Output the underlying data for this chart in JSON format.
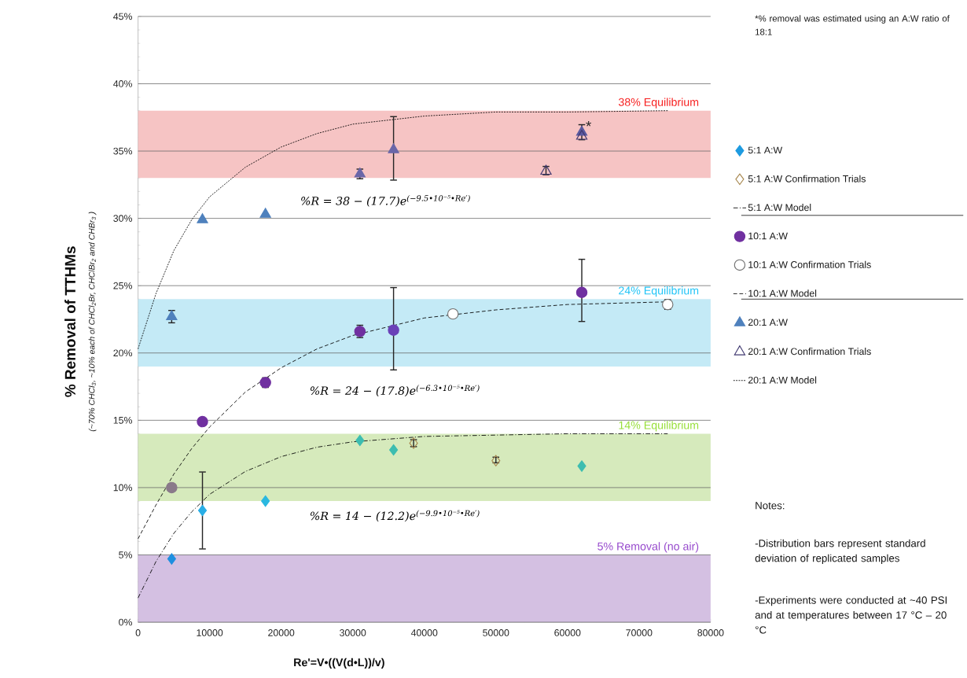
{
  "chart_data": {
    "type": "scatter",
    "xlabel": "Re'=V•((V(d•L))/v)",
    "ylabel": "% Removal of TTHMs",
    "xlim": [
      0,
      80000
    ],
    "xticks": [
      0,
      10000,
      20000,
      30000,
      40000,
      50000,
      60000,
      70000,
      80000
    ],
    "ylim": [
      0,
      45
    ],
    "yticks": [
      {
        "value": 0,
        "label": "0%"
      },
      {
        "value": 5,
        "label": "5%"
      },
      {
        "value": 10,
        "label": "10%"
      },
      {
        "value": 15,
        "label": "15%"
      },
      {
        "value": 20,
        "label": "20%"
      },
      {
        "value": 25,
        "label": "25%"
      },
      {
        "value": 30,
        "label": "30%"
      },
      {
        "value": 35,
        "label": "35%"
      },
      {
        "value": 40,
        "label": "40%"
      },
      {
        "value": 45,
        "label": "45%"
      }
    ],
    "grid": "y",
    "legend": "right",
    "bands": [
      {
        "axis": "y",
        "from": 33,
        "to": 38,
        "label": "38% Equilibrium",
        "color": "#f6c4c4"
      },
      {
        "axis": "y",
        "from": 19,
        "to": 24,
        "label": "24% Equilibrium",
        "color": "#c4eaf6"
      },
      {
        "axis": "y",
        "from": 9,
        "to": 14,
        "label": "14% Equilibrium",
        "color": "#d6eabc"
      },
      {
        "axis": "y",
        "from": 0,
        "to": 5,
        "label": "5% Removal (no air)",
        "color": "#d4c0e2"
      }
    ],
    "series": [
      {
        "name": "5:1 A:W",
        "marker": "diamond",
        "color": "#1e9be0",
        "x": [
          4700,
          9000,
          17800,
          31000,
          35700,
          62000
        ],
        "values": [
          4.7,
          8.3,
          9.0,
          13.5,
          12.8,
          11.6
        ],
        "colors": [
          "#1e8fe0",
          "#29aee6",
          "#2ab8e0",
          "#3dbdb0",
          "#3dbdb0",
          "#3dbdb0"
        ],
        "errors": [
          null,
          [
            5.4,
            11.2
          ],
          null,
          null,
          null,
          null
        ]
      },
      {
        "name": "5:1 A:W Confirmation Trials",
        "marker": "diamond",
        "color": "#a88850",
        "x": [
          38500,
          50000
        ],
        "values": [
          13.3,
          12.0
        ],
        "errors": [
          [
            13.0,
            13.6
          ],
          [
            11.8,
            12.3
          ]
        ]
      },
      {
        "name": "5:1 A:W Model",
        "type": "line",
        "marker": "none",
        "line_style": "dashdot",
        "color": "#000000",
        "x": [
          0,
          2500,
          5000,
          7500,
          10000,
          15000,
          20000,
          25000,
          30000,
          40000,
          50000,
          60000,
          74000
        ],
        "values": [
          1.8,
          4.5,
          6.6,
          8.2,
          9.5,
          11.2,
          12.3,
          13.0,
          13.4,
          13.8,
          13.9,
          14.0,
          14.0
        ]
      },
      {
        "name": "10:1 A:W",
        "marker": "circle",
        "color": "#7030a0",
        "x": [
          4700,
          9000,
          17800,
          31000,
          35700,
          62000
        ],
        "values": [
          10.0,
          14.9,
          17.8,
          21.6,
          21.7,
          24.5
        ],
        "colors": [
          "#8a7a8a",
          "#7030a0",
          "#7030a0",
          "#7030a0",
          "#6a40b8",
          "#7030a0"
        ],
        "errors": [
          null,
          null,
          [
            17.4,
            18.2
          ],
          [
            21.1,
            22.1
          ],
          [
            18.7,
            24.9
          ],
          [
            22.3,
            27.0
          ]
        ]
      },
      {
        "name": "10:1 A:W Confirmation Trials",
        "marker": "circle",
        "color": "#707070",
        "x": [
          44000,
          74000
        ],
        "values": [
          22.9,
          23.6
        ],
        "errors": [
          [
            22.7,
            23.2
          ],
          [
            23.2,
            24.0
          ]
        ]
      },
      {
        "name": "10:1 A:W Model",
        "type": "line",
        "marker": "none",
        "line_style": "dashed",
        "color": "#000000",
        "x": [
          0,
          2500,
          5000,
          7500,
          10000,
          15000,
          20000,
          25000,
          30000,
          40000,
          50000,
          60000,
          74000
        ],
        "values": [
          6.2,
          8.7,
          11.0,
          12.9,
          14.5,
          17.1,
          18.9,
          20.3,
          21.3,
          22.6,
          23.2,
          23.6,
          23.8
        ]
      },
      {
        "name": "20:1 A:W",
        "marker": "triangle",
        "color": "#4f81bd",
        "x": [
          4700,
          9000,
          17800,
          31000,
          35700,
          62000
        ],
        "values": [
          22.7,
          29.9,
          30.3,
          33.3,
          35.1,
          36.4
        ],
        "colors": [
          "#4f81bd",
          "#4f81bd",
          "#4f81bd",
          "#6a66a8",
          "#6a66a8",
          "#5a5aa0"
        ],
        "errors": [
          [
            22.2,
            23.2
          ],
          null,
          null,
          [
            32.9,
            33.7
          ],
          [
            32.8,
            37.6
          ],
          [
            35.8,
            37.0
          ]
        ]
      },
      {
        "name": "20:1 A:W Confirmation Trials",
        "marker": "triangle",
        "color": "#403870",
        "x": [
          57000,
          62000
        ],
        "values": [
          33.5,
          36.1
        ],
        "errors": [
          [
            33.2,
            33.9
          ],
          null
        ]
      },
      {
        "name": "20:1 A:W Model",
        "type": "line",
        "marker": "none",
        "line_style": "dotted",
        "color": "#000000",
        "x": [
          0,
          2500,
          5000,
          7500,
          10000,
          15000,
          20000,
          25000,
          30000,
          40000,
          50000,
          60000,
          74000
        ],
        "values": [
          20.3,
          24.4,
          27.6,
          29.9,
          31.6,
          33.8,
          35.3,
          36.3,
          37.0,
          37.6,
          37.9,
          37.9,
          38.0
        ]
      }
    ],
    "annotations": [
      "*% removal was estimated using an A:W ratio of 18:1",
      "%R = 38 − (17.7)e$^{(−9.5•10⁻⁵•Re′)}$",
      "%R = 24 − (17.8)e$^{(−6.3•10⁻⁵•Re′)}$",
      "%R = 14 − (12.2)e$^{(−9.9•10⁻⁵•Re′)}$",
      "Notes:",
      "-Distribution bars represent standard deviation of replicated samples",
      "-Experiments were conducted at ~40 PSI and at temperatures between 17 °C – 20 °C",
      "(~70% CHCl$_{3}$, ~10% each of CHCl$_{2}$Br, CHClBr$_{2}$ and CHBr$_{3}$ )",
      {
        "text": "*",
        "x": 62000,
        "y": 36.4
      }
    ]
  }
}
